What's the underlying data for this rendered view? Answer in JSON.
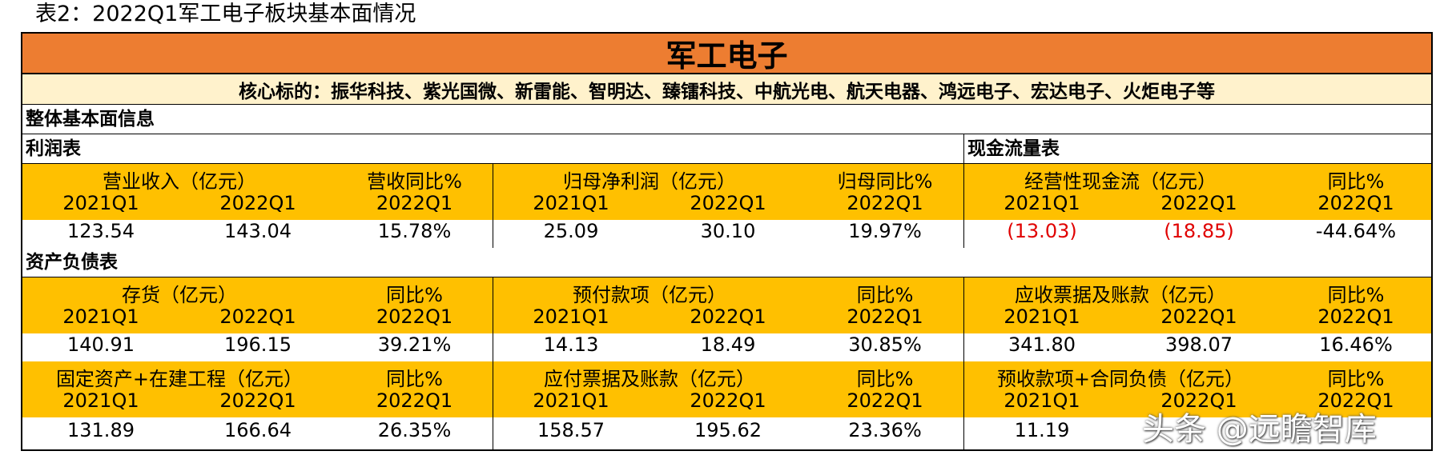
{
  "caption": "表2：2022Q1军工电子板块基本面情况",
  "table": {
    "title": "军工电子",
    "targets": "核心标的：振华科技、紫光国微、新雷能、智明达、臻镭科技、中航光电、航天电器、鸿远电子、宏达电子、火炬电子等",
    "overall_label": "整体基本面信息",
    "income_label": "利润表",
    "cashflow_label": "现金流量表",
    "balance_label": "资产负债表",
    "q_prev": "2021Q1",
    "q_curr": "2022Q1",
    "yoy": "同比%",
    "income": {
      "revenue_label": "营业收入（亿元）",
      "revenue_yoy_label": "营收同比%",
      "profit_label": "归母净利润（亿元）",
      "profit_yoy_label": "归母同比%",
      "ocf_label": "经营性现金流（亿元）",
      "ocf_yoy_label": "同比%",
      "values": [
        "123.54",
        "143.04",
        "15.78%",
        "25.09",
        "30.10",
        "19.97%",
        "(13.03)",
        "(18.85)",
        "-44.64%"
      ]
    },
    "balance1": {
      "labels": [
        "存货（亿元）",
        "预付款项（亿元）",
        "应收票据及账款（亿元）"
      ],
      "values": [
        "140.91",
        "196.15",
        "39.21%",
        "14.13",
        "18.49",
        "30.85%",
        "341.80",
        "398.07",
        "16.46%"
      ]
    },
    "balance2": {
      "labels": [
        "固定资产+在建工程（亿元）",
        "应付票据及账款（亿元）",
        "预收款项+合同负债（亿元）"
      ],
      "values": [
        "131.89",
        "166.64",
        "26.35%",
        "158.57",
        "195.62",
        "23.36%",
        "11.19",
        "",
        ""
      ]
    },
    "colors": {
      "orange": "#ed7d31",
      "yellow": "#ffc000",
      "cream": "#fff2cc",
      "negative": "#e00000"
    }
  },
  "watermark": "头条 @远瞻智库"
}
